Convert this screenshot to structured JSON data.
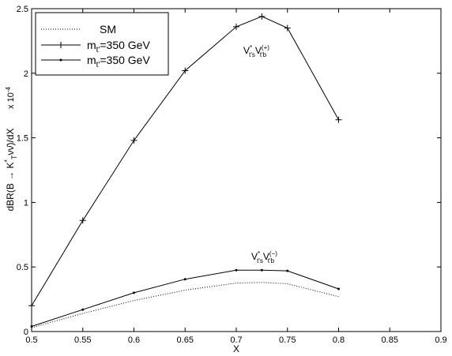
{
  "chart_data": {
    "type": "line",
    "xlabel": "X",
    "ylabel": "dBR(B → K*_T νν̄)/dX",
    "ylabel_parts": {
      "prefix": "dBR(B → K",
      "sup": "*",
      "sub": "T",
      "suffix": "νν̄)/dX"
    },
    "y_multiplier_text": {
      "base": "x 10",
      "exp": "-4"
    },
    "xlim": [
      0.5,
      0.9
    ],
    "ylim": [
      0,
      2.5
    ],
    "x_ticks": [
      "0.5",
      "0.55",
      "0.6",
      "0.65",
      "0.7",
      "0.75",
      "0.8",
      "0.85",
      "0.9"
    ],
    "x_tick_values": [
      0.5,
      0.55,
      0.6,
      0.65,
      0.7,
      0.75,
      0.8,
      0.85,
      0.9
    ],
    "y_ticks": [
      "0",
      "0.5",
      "1",
      "1.5",
      "2",
      "2.5"
    ],
    "y_tick_values": [
      0,
      0.5,
      1,
      1.5,
      2,
      2.5
    ],
    "grid": false,
    "legend_position": "top-left",
    "legend": [
      {
        "name": "SM",
        "style": "dotted",
        "marker": "none"
      },
      {
        "name": "m_t' = 350 GeV",
        "label_parts": {
          "pre": "m",
          "sub": "t'",
          "post": "=350 GeV"
        },
        "style": "solid",
        "marker": "plus"
      },
      {
        "name": "m_t' = 350 GeV",
        "label_parts": {
          "pre": "m",
          "sub": "t'",
          "post": "=350 GeV"
        },
        "style": "solid",
        "marker": "dot"
      }
    ],
    "series": [
      {
        "name": "SM",
        "style": "dotted",
        "marker": "none",
        "x": [
          0.5,
          0.55,
          0.6,
          0.65,
          0.7,
          0.725,
          0.75,
          0.8
        ],
        "y": [
          0.03,
          0.14,
          0.24,
          0.32,
          0.375,
          0.38,
          0.37,
          0.27
        ]
      },
      {
        "name": "m_t' = 350 GeV",
        "style": "solid",
        "marker": "plus",
        "x": [
          0.5,
          0.55,
          0.6,
          0.65,
          0.7,
          0.725,
          0.75,
          0.8
        ],
        "y": [
          0.2,
          0.86,
          1.48,
          2.02,
          2.36,
          2.44,
          2.35,
          1.64
        ]
      },
      {
        "name": "m_t' = 350 GeV",
        "style": "solid",
        "marker": "dot",
        "x": [
          0.5,
          0.55,
          0.6,
          0.65,
          0.7,
          0.725,
          0.75,
          0.8
        ],
        "y": [
          0.04,
          0.17,
          0.3,
          0.405,
          0.475,
          0.475,
          0.47,
          0.33
        ]
      }
    ],
    "annotations": [
      {
        "name": "plus-curve-annotation",
        "text": "V*_{t's} V^{(+)}_{t'b}",
        "parts": {
          "main1": "V",
          "sup1": "*",
          "sub1": "t's",
          "main2": "V",
          "sup2": "(+)",
          "sub2": "t'b"
        },
        "x": 0.725,
        "y": 2.1
      },
      {
        "name": "minus-curve-annotation",
        "text": "V*_{t's} V^{(−)}_{t'b}",
        "parts": {
          "main1": "V",
          "sup1": "*",
          "sub1": "t's",
          "main2": "V",
          "sup2": "(−)",
          "sub2": "t'b"
        },
        "x": 0.725,
        "y": 0.55
      }
    ]
  }
}
